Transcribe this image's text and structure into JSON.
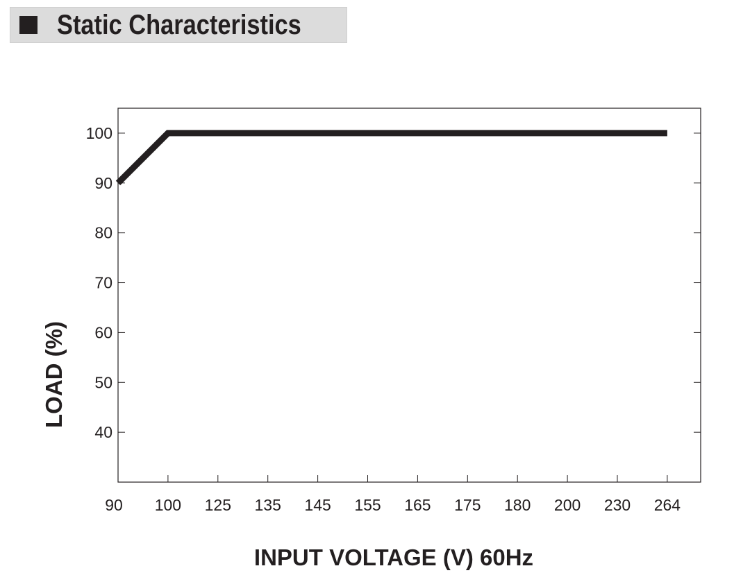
{
  "header": {
    "title": "Static Characteristics"
  },
  "colors": {
    "ink": "#231f20",
    "header_bg": "#dcdcdc"
  },
  "chart_data": {
    "type": "line",
    "title": "",
    "xlabel": "INPUT VOLTAGE (V) 60Hz",
    "ylabel": "LOAD (%)",
    "x_tick_labels": [
      "90",
      "100",
      "125",
      "135",
      "145",
      "155",
      "165",
      "175",
      "180",
      "200",
      "230",
      "264"
    ],
    "y_tick_labels": [
      "40",
      "50",
      "60",
      "70",
      "80",
      "90",
      "100"
    ],
    "ylim": [
      30,
      105
    ],
    "grid": false,
    "series": [
      {
        "x": [
          "90",
          "100",
          "264"
        ],
        "values": [
          90,
          100,
          100
        ]
      }
    ]
  }
}
